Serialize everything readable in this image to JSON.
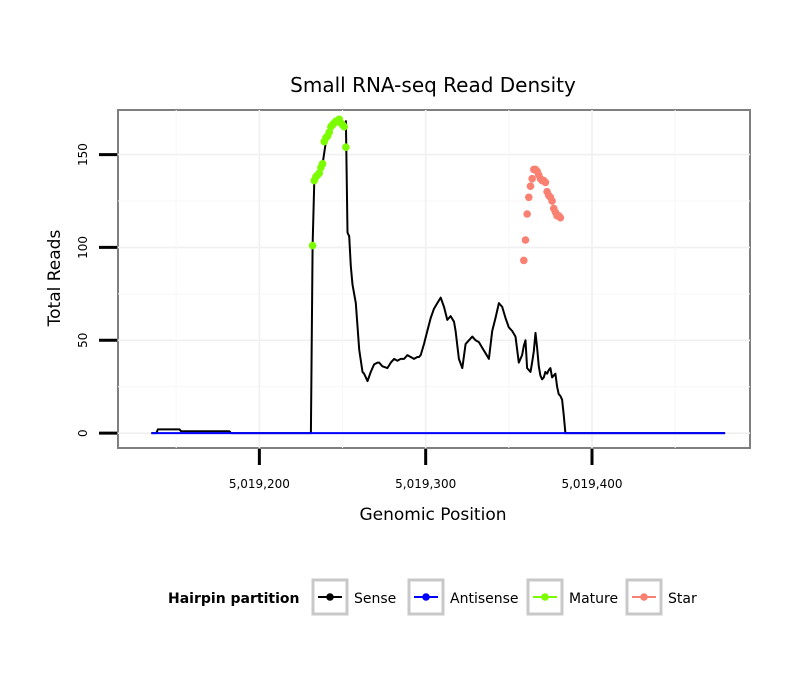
{
  "chart_data": {
    "type": "line",
    "title": "Small RNA-seq Read Density",
    "xlabel": "Genomic Position",
    "ylabel": "Total Reads",
    "xlim": [
      5019115,
      5019495
    ],
    "ylim": [
      -8,
      174
    ],
    "x_ticks": [
      5019200,
      5019300,
      5019400
    ],
    "x_tick_labels": [
      "5,019,200",
      "5,019,300",
      "5,019,400"
    ],
    "y_ticks": [
      0,
      50,
      100,
      150
    ],
    "y_tick_labels": [
      "0",
      "50",
      "100",
      "150"
    ],
    "grid": true,
    "legend": {
      "title": "Hairpin partition",
      "position": "bottom",
      "entries": [
        {
          "label": "Sense",
          "color": "#000000"
        },
        {
          "label": "Antisense",
          "color": "#0000ff"
        },
        {
          "label": "Mature",
          "color": "#7cfc00"
        },
        {
          "label": "Star",
          "color": "#fa8072"
        }
      ]
    },
    "series": [
      {
        "name": "Sense",
        "color": "#000000",
        "x": [
          5019135,
          5019138,
          5019139,
          5019152,
          5019153,
          5019163,
          5019164,
          5019182,
          5019183,
          5019230,
          5019231,
          5019232,
          5019233,
          5019235,
          5019237,
          5019238,
          5019240,
          5019242,
          5019243,
          5019244,
          5019246,
          5019248,
          5019249,
          5019250,
          5019251,
          5019252,
          5019253,
          5019254,
          5019255,
          5019256,
          5019258,
          5019260,
          5019262,
          5019263,
          5019265,
          5019267,
          5019269,
          5019271,
          5019272,
          5019274,
          5019277,
          5019279,
          5019281,
          5019283,
          5019285,
          5019287,
          5019289,
          5019291,
          5019293,
          5019295,
          5019296,
          5019297,
          5019299,
          5019301,
          5019303,
          5019305,
          5019307,
          5019309,
          5019311,
          5019313,
          5019315,
          5019317,
          5019318,
          5019320,
          5019322,
          5019324,
          5019326,
          5019328,
          5019330,
          5019332,
          5019334,
          5019336,
          5019338,
          5019340,
          5019342,
          5019344,
          5019346,
          5019348,
          5019350,
          5019352,
          5019354,
          5019356,
          5019358,
          5019359,
          5019360,
          5019361,
          5019362,
          5019363,
          5019364,
          5019365,
          5019366,
          5019367,
          5019368,
          5019369,
          5019370,
          5019371,
          5019372,
          5019373,
          5019374,
          5019375,
          5019376,
          5019377,
          5019378,
          5019379,
          5019380,
          5019381,
          5019382,
          5019383,
          5019384,
          5019399,
          5019400,
          5019401,
          5019402,
          5019403,
          5019420,
          5019421,
          5019432,
          5019433,
          5019443,
          5019444,
          5019452,
          5019453,
          5019480
        ],
        "y": [
          0,
          0,
          2,
          2,
          1,
          1,
          1,
          1,
          0,
          0,
          0,
          101,
          136,
          138,
          140,
          145,
          157,
          160,
          162,
          165,
          167,
          168,
          169,
          166,
          164,
          168,
          108,
          106,
          90,
          80,
          70,
          45,
          33,
          32,
          28,
          33,
          37,
          38,
          38,
          36,
          35,
          38,
          40,
          39,
          40,
          40,
          42,
          41,
          40,
          41,
          41,
          42,
          48,
          55,
          62,
          67,
          70,
          73,
          68,
          61,
          63,
          60,
          55,
          40,
          35,
          48,
          50,
          52,
          50,
          49,
          46,
          43,
          40,
          55,
          62,
          70,
          68,
          62,
          57,
          55,
          52,
          38,
          42,
          47,
          50,
          35,
          34,
          33,
          38,
          44,
          54,
          46,
          36,
          31,
          29,
          30,
          33,
          32,
          34,
          35,
          30,
          31,
          32,
          25,
          21,
          20,
          18,
          10,
          0,
          0,
          0,
          0,
          0,
          0,
          0,
          0,
          0,
          0,
          0,
          0,
          0,
          0,
          0
        ]
      },
      {
        "name": "Antisense",
        "color": "#0000ff",
        "x": [
          5019135,
          5019480
        ],
        "y": [
          0,
          0
        ]
      },
      {
        "name": "Mature",
        "color": "#7cfc00",
        "x": [
          5019232,
          5019233,
          5019234,
          5019235,
          5019236,
          5019237,
          5019238,
          5019239,
          5019240,
          5019241,
          5019242,
          5019243,
          5019244,
          5019245,
          5019246,
          5019247,
          5019248,
          5019249,
          5019250,
          5019251,
          5019252
        ],
        "y": [
          101,
          136,
          138,
          139,
          140,
          143,
          145,
          157,
          159,
          160,
          162,
          165,
          166,
          167,
          168,
          168,
          169,
          167,
          166,
          165,
          154
        ]
      },
      {
        "name": "Star",
        "color": "#fa8072",
        "x": [
          5019359,
          5019360,
          5019361,
          5019362,
          5019363,
          5019364,
          5019365,
          5019366,
          5019367,
          5019368,
          5019369,
          5019370,
          5019371,
          5019372,
          5019373,
          5019374,
          5019375,
          5019376,
          5019377,
          5019378,
          5019379,
          5019380,
          5019381
        ],
        "y": [
          93,
          104,
          118,
          127,
          133,
          137,
          142,
          142,
          141,
          139,
          137,
          136,
          136,
          135,
          130,
          128,
          127,
          125,
          121,
          119,
          117,
          117,
          116
        ]
      }
    ]
  }
}
